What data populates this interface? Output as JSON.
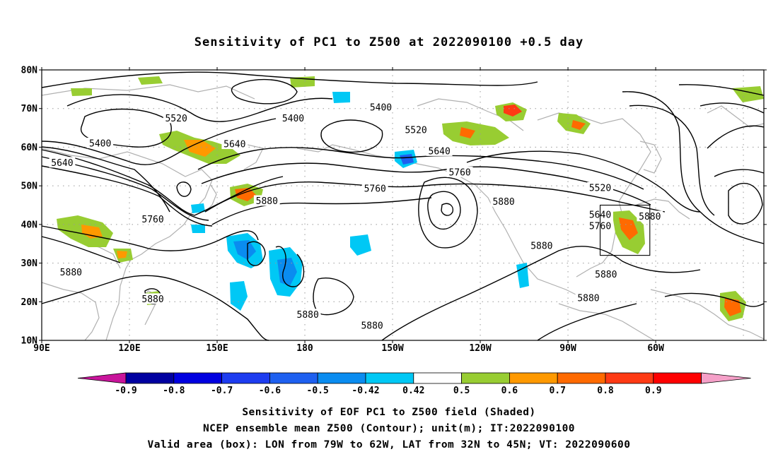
{
  "title": "Sensitivity of PC1 to Z500 at 2022090100 +0.5 day",
  "lat_labels": [
    "80N",
    "70N",
    "60N",
    "50N",
    "40N",
    "30N",
    "20N",
    "10N"
  ],
  "lon_labels": [
    "90E",
    "120E",
    "150E",
    "180",
    "150W",
    "120W",
    "90W",
    "60W"
  ],
  "contour_labels": [
    {
      "text": "5400",
      "lon": 206,
      "lat": 70.3
    },
    {
      "text": "5400",
      "lon": 176,
      "lat": 67.5
    },
    {
      "text": "5400",
      "lon": 110,
      "lat": 61.0
    },
    {
      "text": "5520",
      "lon": 136,
      "lat": 67.5
    },
    {
      "text": "5520",
      "lon": 218,
      "lat": 64.5
    },
    {
      "text": "5520",
      "lon": 281,
      "lat": 49.5
    },
    {
      "text": "5640",
      "lon": 156,
      "lat": 60.8
    },
    {
      "text": "5640",
      "lon": 97,
      "lat": 56.0
    },
    {
      "text": "5640",
      "lon": 226,
      "lat": 59.0
    },
    {
      "text": "5640",
      "lon": 281,
      "lat": 42.5
    },
    {
      "text": "5760",
      "lon": 233,
      "lat": 53.5
    },
    {
      "text": "5760",
      "lon": 204,
      "lat": 49.3
    },
    {
      "text": "5760",
      "lon": 128,
      "lat": 41.3
    },
    {
      "text": "5760",
      "lon": 281,
      "lat": 39.6
    },
    {
      "text": "5880",
      "lon": 167,
      "lat": 46.1
    },
    {
      "text": "5880",
      "lon": 248,
      "lat": 45.9
    },
    {
      "text": "5880",
      "lon": 100,
      "lat": 27.6
    },
    {
      "text": "5880",
      "lon": 128,
      "lat": 20.7
    },
    {
      "text": "5880",
      "lon": 261,
      "lat": 34.5
    },
    {
      "text": "5880",
      "lon": 283,
      "lat": 27.1
    },
    {
      "text": "5880",
      "lon": 298,
      "lat": 42.1
    },
    {
      "text": "5880",
      "lon": 277,
      "lat": 21.0
    },
    {
      "text": "5880",
      "lon": 181,
      "lat": 16.7
    },
    {
      "text": "5880",
      "lon": 203,
      "lat": 13.8
    }
  ],
  "valid_box": {
    "lon_w": -79,
    "lon_e": -62,
    "lat_s": 32,
    "lat_n": 45
  },
  "colorbar": {
    "colors": [
      "#0000a0",
      "#0000e0",
      "#1d3cf0",
      "#1e60f0",
      "#0a8cf0",
      "#00c8f5",
      "#ffffff",
      "#98cd32",
      "#ff9900",
      "#ff6a00",
      "#ff3a14",
      "#ff0000"
    ],
    "low_arrow": "#c8149b",
    "high_arrow": "#f5a0c8",
    "labels": [
      "-0.9",
      "-0.8",
      "-0.7",
      "-0.6",
      "-0.5",
      "-0.42",
      "0.42",
      "0.5",
      "0.6",
      "0.7",
      "0.8",
      "0.9"
    ]
  },
  "footer": {
    "line1": "Sensitivity of EOF PC1 to Z500 field (Shaded)",
    "line2": "NCEP ensemble mean Z500 (Contour); unit(m); IT:2022090100",
    "line3": "Valid area (box): LON from 79W to 62W, LAT from 32N to 45N; VT: 2022090600"
  }
}
